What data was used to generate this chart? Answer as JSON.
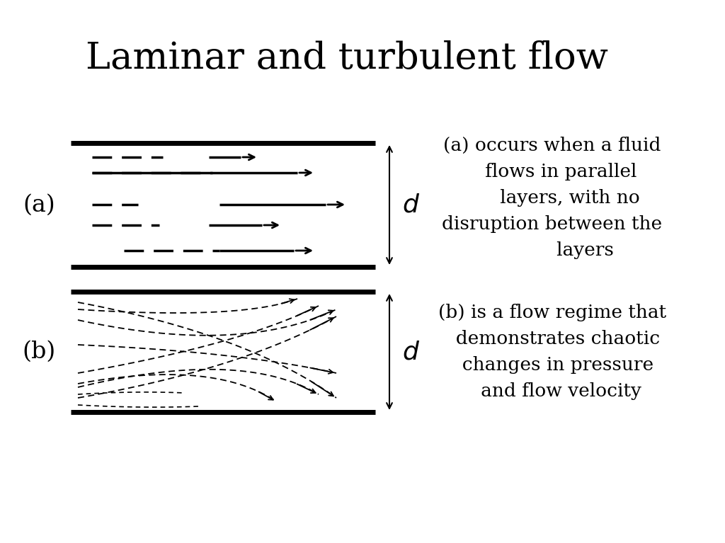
{
  "title": "Laminar and turbulent flow",
  "title_fontsize": 38,
  "bg_color": "#ffffff",
  "text_color": "#000000",
  "label_a": "(a)",
  "label_b": "(b)",
  "desc_a": "(a) occurs when a fluid\n     flows in parallel\n        layers, with no\n disruption between the\n              layers",
  "desc_b": "(b) is a flow regime that\n    demonstrates chaotic\n    changes in pressure\n    and flow velocity",
  "desc_fontsize": 19,
  "label_fontsize": 24
}
